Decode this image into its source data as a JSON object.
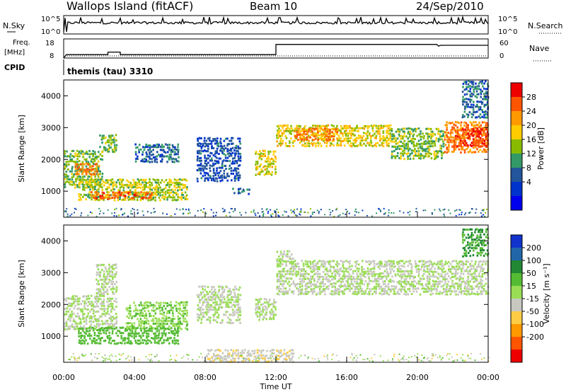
{
  "header": {
    "site": "Wallops Island (fitACF)",
    "beam": "Beam 10",
    "date": "24/Sep/2010"
  },
  "strip_nsky": {
    "left_label": "N.Sky",
    "right_label": "N.Search",
    "ticks_left": [
      "10^5",
      "10^0"
    ],
    "ticks_right": [
      "10^5",
      "10^0"
    ]
  },
  "strip_freq": {
    "left_label_1": "Freq.",
    "left_label_2": "[MHz]",
    "right_label": "Nave",
    "ticks_left": [
      "18",
      "8"
    ],
    "ticks_right": [
      "60",
      "0"
    ],
    "cpid_label": "CPID",
    "cpid_text": "themis (tau) 3310"
  },
  "power_panel": {
    "ylabel": "Slant Range [km]",
    "colorbar_label": "Power [dB]",
    "colorbar_ticks": [
      "28",
      "24",
      "20",
      "16",
      "12",
      "8",
      "4"
    ],
    "colorbar_colors": [
      "#ee0000",
      "#ff5500",
      "#ff9900",
      "#ffcc00",
      "#88bb00",
      "#339966",
      "#225599",
      "#0033cc",
      "#0000ee"
    ]
  },
  "velocity_panel": {
    "ylabel": "Slant Range [km]",
    "colorbar_label": "Velocity [m s⁻¹]",
    "colorbar_ticks": [
      "200",
      "100",
      "50",
      "15",
      "-15",
      "-50",
      "-100",
      "-200"
    ],
    "colorbar_colors": [
      "#1133cc",
      "#2266aa",
      "#228833",
      "#55bb33",
      "#99dd55",
      "#c8c8c0",
      "#ffcc44",
      "#ff9900",
      "#ff5500",
      "#ee0000"
    ]
  },
  "x_axis": {
    "label": "Time UT",
    "ticks": [
      "00:00",
      "04:00",
      "08:00",
      "12:00",
      "16:00",
      "20:00",
      "00:00"
    ]
  },
  "chart_data": {
    "type": "heatmap",
    "x_range_hours": [
      0,
      24
    ],
    "y_range_km": [
      180,
      4500
    ],
    "y_ticks_km": [
      1000,
      2000,
      3000,
      4000
    ],
    "freq_mhz": [
      {
        "t": 0.0,
        "v": 8
      },
      {
        "t": 0.15,
        "v": 10
      },
      {
        "t": 2.5,
        "v": 10
      },
      {
        "t": 2.5,
        "v": 11.5
      },
      {
        "t": 3.2,
        "v": 11.5
      },
      {
        "t": 3.2,
        "v": 10
      },
      {
        "t": 12.0,
        "v": 10
      },
      {
        "t": 12.0,
        "v": 16
      },
      {
        "t": 21.1,
        "v": 16
      },
      {
        "t": 21.2,
        "v": 15
      },
      {
        "t": 21.3,
        "v": 15.5
      },
      {
        "t": 24.0,
        "v": 15.5
      }
    ],
    "power_bands": [
      {
        "t0": 0.0,
        "t1": 2.2,
        "r0": 1100,
        "r1": 2300,
        "level": 14
      },
      {
        "t0": 0.6,
        "t1": 2.0,
        "r0": 1500,
        "r1": 1900,
        "level": 24
      },
      {
        "t0": 0.8,
        "t1": 7.0,
        "r0": 700,
        "r1": 1400,
        "level": 16
      },
      {
        "t0": 1.5,
        "t1": 5.0,
        "r0": 750,
        "r1": 1000,
        "level": 26
      },
      {
        "t0": 2.0,
        "t1": 3.0,
        "r0": 2200,
        "r1": 2800,
        "level": 14
      },
      {
        "t0": 4.0,
        "t1": 6.5,
        "r0": 1900,
        "r1": 2500,
        "level": 8
      },
      {
        "t0": 7.5,
        "t1": 10.0,
        "r0": 1300,
        "r1": 2700,
        "level": 6
      },
      {
        "t0": 9.5,
        "t1": 10.5,
        "r0": 900,
        "r1": 1100,
        "level": 8
      },
      {
        "t0": 10.8,
        "t1": 12.0,
        "r0": 1500,
        "r1": 2300,
        "level": 18
      },
      {
        "t0": 12.0,
        "t1": 18.5,
        "r0": 2400,
        "r1": 3100,
        "level": 18
      },
      {
        "t0": 13.0,
        "t1": 15.5,
        "r0": 2600,
        "r1": 3000,
        "level": 24
      },
      {
        "t0": 18.5,
        "t1": 21.5,
        "r0": 2000,
        "r1": 3000,
        "level": 14
      },
      {
        "t0": 21.5,
        "t1": 24.0,
        "r0": 2200,
        "r1": 3200,
        "level": 24
      },
      {
        "t0": 22.0,
        "t1": 24.0,
        "r0": 2400,
        "r1": 3000,
        "level": 28
      },
      {
        "t0": 22.5,
        "t1": 24.0,
        "r0": 3300,
        "r1": 4500,
        "level": 8
      }
    ],
    "velocity_bands": [
      {
        "t0": 0.0,
        "t1": 3.0,
        "r0": 1200,
        "r1": 2300,
        "v": 0
      },
      {
        "t0": 1.8,
        "t1": 3.0,
        "r0": 2300,
        "r1": 3300,
        "v": 0
      },
      {
        "t0": 3.5,
        "t1": 7.0,
        "r0": 1200,
        "r1": 2100,
        "v": 40
      },
      {
        "t0": 0.8,
        "t1": 6.5,
        "r0": 750,
        "r1": 1300,
        "v": 60
      },
      {
        "t0": 7.5,
        "t1": 10.0,
        "r0": 1400,
        "r1": 2600,
        "v": 0
      },
      {
        "t0": 10.8,
        "t1": 12.0,
        "r0": 1500,
        "r1": 2200,
        "v": 0
      },
      {
        "t0": 12.0,
        "t1": 24.0,
        "r0": 2300,
        "r1": 3400,
        "v": 0
      },
      {
        "t0": 12.0,
        "t1": 13.0,
        "r0": 3400,
        "r1": 3700,
        "v": 0
      },
      {
        "t0": 8.0,
        "t1": 13.0,
        "r0": 180,
        "r1": 600,
        "v": -40
      },
      {
        "t0": 22.5,
        "t1": 24.0,
        "r0": 3500,
        "r1": 4400,
        "v": 90
      }
    ]
  }
}
